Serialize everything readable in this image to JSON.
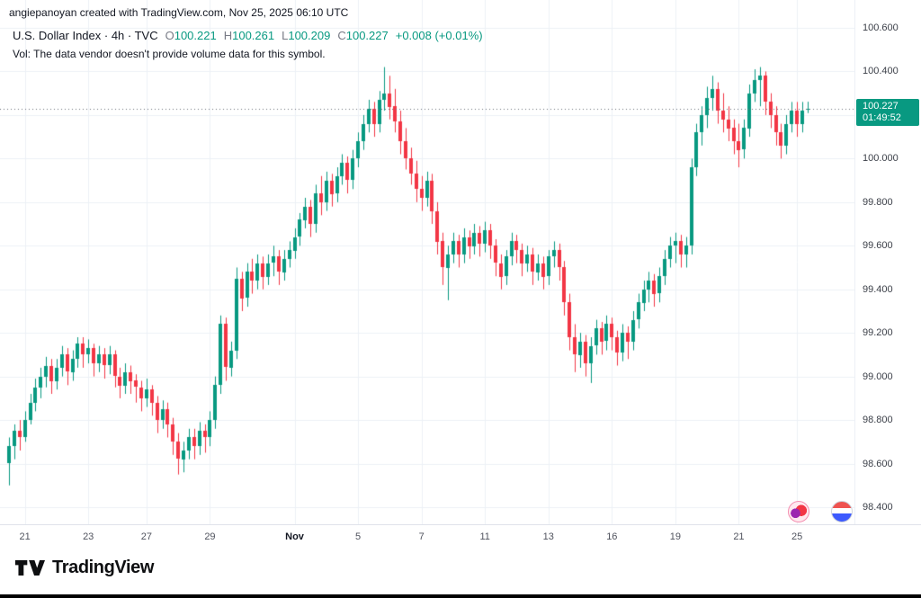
{
  "attribution": "angiepanoyan created with TradingView.com, Nov 25, 2025 06:10 UTC",
  "legend": {
    "symbol_title": "U.S. Dollar Index · 4h · TVC",
    "ohlc": {
      "o_label": "O",
      "o": "100.221",
      "h_label": "H",
      "h": "100.261",
      "l_label": "L",
      "l": "100.209",
      "c_label": "C",
      "c": "100.227"
    },
    "change": "+0.008 (+0.01%)",
    "vol_note": "Vol: The data vendor doesn't provide volume data for this symbol."
  },
  "price_scale": {
    "ticks": [
      "100.600",
      "100.400",
      "100.200",
      "100.000",
      "99.800",
      "99.600",
      "99.400",
      "99.200",
      "99.000",
      "98.800",
      "98.600",
      "98.400"
    ],
    "badge": {
      "price": "100.227",
      "countdown": "01:49:52"
    }
  },
  "time_scale": {
    "labels": [
      {
        "text": "21",
        "index": 3
      },
      {
        "text": "23",
        "index": 15
      },
      {
        "text": "27",
        "index": 26
      },
      {
        "text": "29",
        "index": 38
      },
      {
        "text": "Nov",
        "index": 54,
        "bold": true
      },
      {
        "text": "5",
        "index": 66
      },
      {
        "text": "7",
        "index": 78
      },
      {
        "text": "11",
        "index": 90
      },
      {
        "text": "13",
        "index": 102
      },
      {
        "text": "16",
        "index": 114
      },
      {
        "text": "19",
        "index": 126
      },
      {
        "text": "21",
        "index": 138
      },
      {
        "text": "25",
        "index": 149
      }
    ]
  },
  "colors": {
    "up": "#089981",
    "down": "#F23645",
    "grid": "#edf0f6",
    "last_price_line": "#6a6d78",
    "badge_bg": "#089981"
  },
  "footer": {
    "brand": "TradingView"
  },
  "chart_data": {
    "type": "candlestick",
    "title": "U.S. Dollar Index",
    "interval": "4h",
    "exchange": "TVC",
    "last_close": 100.227,
    "ylim": [
      98.32,
      100.73
    ],
    "price_grid_step": 0.2,
    "x_range": "Oct 21 - Nov 25, 2025",
    "candles": [
      [
        98.6,
        98.72,
        98.5,
        98.68
      ],
      [
        98.68,
        98.78,
        98.62,
        98.75
      ],
      [
        98.75,
        98.8,
        98.66,
        98.72
      ],
      [
        98.72,
        98.84,
        98.7,
        98.8
      ],
      [
        98.8,
        98.92,
        98.78,
        98.88
      ],
      [
        98.88,
        98.99,
        98.84,
        98.95
      ],
      [
        98.95,
        99.04,
        98.9,
        99.0
      ],
      [
        99.0,
        99.09,
        98.95,
        99.05
      ],
      [
        99.05,
        99.08,
        98.92,
        98.98
      ],
      [
        98.98,
        99.08,
        98.94,
        99.04
      ],
      [
        99.04,
        99.14,
        99.0,
        99.1
      ],
      [
        99.1,
        99.13,
        98.96,
        99.02
      ],
      [
        99.02,
        99.12,
        98.98,
        99.08
      ],
      [
        99.08,
        99.18,
        99.04,
        99.15
      ],
      [
        99.15,
        99.18,
        99.04,
        99.1
      ],
      [
        99.1,
        99.17,
        99.06,
        99.13
      ],
      [
        99.13,
        99.15,
        99.0,
        99.06
      ],
      [
        99.06,
        99.14,
        99.02,
        99.1
      ],
      [
        99.1,
        99.13,
        98.99,
        99.05
      ],
      [
        99.05,
        99.14,
        99.01,
        99.1
      ],
      [
        99.1,
        99.12,
        98.95,
        99.0
      ],
      [
        99.0,
        99.04,
        98.9,
        98.96
      ],
      [
        98.96,
        99.06,
        98.92,
        99.02
      ],
      [
        99.02,
        99.05,
        98.92,
        98.98
      ],
      [
        98.98,
        99.01,
        98.88,
        98.95
      ],
      [
        98.95,
        98.98,
        98.84,
        98.9
      ],
      [
        98.9,
        98.99,
        98.86,
        98.94
      ],
      [
        98.94,
        98.96,
        98.82,
        98.88
      ],
      [
        98.88,
        98.91,
        98.74,
        98.8
      ],
      [
        98.8,
        98.89,
        98.76,
        98.85
      ],
      [
        98.85,
        98.88,
        98.72,
        98.78
      ],
      [
        98.78,
        98.81,
        98.64,
        98.7
      ],
      [
        98.7,
        98.74,
        98.55,
        98.62
      ],
      [
        98.62,
        98.7,
        98.56,
        98.66
      ],
      [
        98.66,
        98.76,
        98.62,
        98.72
      ],
      [
        98.72,
        98.76,
        98.62,
        98.68
      ],
      [
        98.68,
        98.79,
        98.64,
        98.75
      ],
      [
        98.75,
        98.78,
        98.65,
        98.72
      ],
      [
        98.72,
        98.84,
        98.68,
        98.8
      ],
      [
        98.8,
        99.0,
        98.76,
        98.96
      ],
      [
        98.96,
        99.28,
        98.92,
        99.24
      ],
      [
        99.24,
        99.27,
        98.98,
        99.04
      ],
      [
        99.04,
        99.16,
        99.0,
        99.12
      ],
      [
        99.12,
        99.5,
        99.08,
        99.45
      ],
      [
        99.45,
        99.48,
        99.3,
        99.36
      ],
      [
        99.36,
        99.52,
        99.32,
        99.48
      ],
      [
        99.48,
        99.54,
        99.38,
        99.44
      ],
      [
        99.44,
        99.56,
        99.4,
        99.52
      ],
      [
        99.52,
        99.55,
        99.4,
        99.46
      ],
      [
        99.46,
        99.56,
        99.42,
        99.52
      ],
      [
        99.52,
        99.6,
        99.46,
        99.55
      ],
      [
        99.55,
        99.58,
        99.42,
        99.48
      ],
      [
        99.48,
        99.58,
        99.44,
        99.54
      ],
      [
        99.54,
        99.62,
        99.5,
        99.58
      ],
      [
        99.58,
        99.68,
        99.54,
        99.64
      ],
      [
        99.64,
        99.75,
        99.6,
        99.72
      ],
      [
        99.72,
        99.82,
        99.68,
        99.78
      ],
      [
        99.78,
        99.81,
        99.64,
        99.7
      ],
      [
        99.7,
        99.88,
        99.66,
        99.84
      ],
      [
        99.84,
        99.92,
        99.74,
        99.8
      ],
      [
        99.8,
        99.94,
        99.76,
        99.9
      ],
      [
        99.9,
        99.93,
        99.78,
        99.84
      ],
      [
        99.84,
        99.96,
        99.8,
        99.92
      ],
      [
        99.92,
        100.02,
        99.88,
        99.98
      ],
      [
        99.98,
        100.01,
        99.84,
        99.9
      ],
      [
        99.9,
        100.04,
        99.86,
        100.0
      ],
      [
        100.0,
        100.12,
        99.96,
        100.08
      ],
      [
        100.08,
        100.2,
        100.04,
        100.16
      ],
      [
        100.16,
        100.27,
        100.12,
        100.23
      ],
      [
        100.23,
        100.26,
        100.1,
        100.16
      ],
      [
        100.16,
        100.31,
        100.12,
        100.27
      ],
      [
        100.27,
        100.42,
        100.22,
        100.3
      ],
      [
        100.3,
        100.38,
        100.18,
        100.24
      ],
      [
        100.24,
        100.32,
        100.12,
        100.17
      ],
      [
        100.17,
        100.22,
        100.02,
        100.08
      ],
      [
        100.08,
        100.14,
        99.95,
        100.0
      ],
      [
        100.0,
        100.05,
        99.88,
        99.93
      ],
      [
        99.93,
        99.99,
        99.8,
        99.86
      ],
      [
        99.86,
        99.92,
        99.76,
        99.82
      ],
      [
        99.82,
        99.94,
        99.78,
        99.9
      ],
      [
        99.9,
        99.93,
        99.7,
        99.76
      ],
      [
        99.76,
        99.8,
        99.56,
        99.62
      ],
      [
        99.62,
        99.66,
        99.42,
        99.5
      ],
      [
        99.5,
        99.6,
        99.35,
        99.56
      ],
      [
        99.56,
        99.66,
        99.52,
        99.62
      ],
      [
        99.62,
        99.65,
        99.5,
        99.56
      ],
      [
        99.56,
        99.68,
        99.52,
        99.64
      ],
      [
        99.64,
        99.67,
        99.54,
        99.6
      ],
      [
        99.6,
        99.7,
        99.56,
        99.66
      ],
      [
        99.66,
        99.69,
        99.55,
        99.61
      ],
      [
        99.61,
        99.71,
        99.57,
        99.67
      ],
      [
        99.67,
        99.7,
        99.54,
        99.6
      ],
      [
        99.6,
        99.63,
        99.46,
        99.52
      ],
      [
        99.52,
        99.56,
        99.4,
        99.46
      ],
      [
        99.46,
        99.58,
        99.42,
        99.55
      ],
      [
        99.55,
        99.66,
        99.51,
        99.62
      ],
      [
        99.62,
        99.65,
        99.52,
        99.58
      ],
      [
        99.58,
        99.61,
        99.46,
        99.52
      ],
      [
        99.52,
        99.6,
        99.48,
        99.56
      ],
      [
        99.56,
        99.59,
        99.42,
        99.48
      ],
      [
        99.48,
        99.56,
        99.44,
        99.52
      ],
      [
        99.52,
        99.55,
        99.4,
        99.46
      ],
      [
        99.46,
        99.58,
        99.42,
        99.55
      ],
      [
        99.55,
        99.62,
        99.5,
        99.58
      ],
      [
        99.58,
        99.61,
        99.44,
        99.5
      ],
      [
        99.5,
        99.53,
        99.28,
        99.34
      ],
      [
        99.34,
        99.38,
        99.12,
        99.18
      ],
      [
        99.18,
        99.24,
        99.02,
        99.1
      ],
      [
        99.1,
        99.2,
        99.04,
        99.16
      ],
      [
        99.16,
        99.19,
        99.0,
        99.06
      ],
      [
        99.06,
        99.18,
        98.97,
        99.14
      ],
      [
        99.14,
        99.26,
        99.1,
        99.22
      ],
      [
        99.22,
        99.25,
        99.1,
        99.16
      ],
      [
        99.16,
        99.28,
        99.12,
        99.24
      ],
      [
        99.24,
        99.27,
        99.12,
        99.18
      ],
      [
        99.18,
        99.21,
        99.05,
        99.11
      ],
      [
        99.11,
        99.24,
        99.07,
        99.2
      ],
      [
        99.2,
        99.23,
        99.08,
        99.16
      ],
      [
        99.16,
        99.3,
        99.12,
        99.26
      ],
      [
        99.26,
        99.38,
        99.22,
        99.34
      ],
      [
        99.34,
        99.44,
        99.3,
        99.4
      ],
      [
        99.4,
        99.48,
        99.34,
        99.44
      ],
      [
        99.44,
        99.47,
        99.32,
        99.38
      ],
      [
        99.38,
        99.5,
        99.34,
        99.46
      ],
      [
        99.46,
        99.58,
        99.42,
        99.54
      ],
      [
        99.54,
        99.64,
        99.5,
        99.6
      ],
      [
        99.6,
        99.66,
        99.52,
        99.62
      ],
      [
        99.62,
        99.65,
        99.5,
        99.56
      ],
      [
        99.56,
        99.64,
        99.5,
        99.6
      ],
      [
        99.6,
        100.0,
        99.56,
        99.96
      ],
      [
        99.96,
        100.16,
        99.92,
        100.12
      ],
      [
        100.12,
        100.24,
        100.06,
        100.2
      ],
      [
        100.2,
        100.33,
        100.14,
        100.28
      ],
      [
        100.28,
        100.38,
        100.22,
        100.32
      ],
      [
        100.32,
        100.35,
        100.16,
        100.22
      ],
      [
        100.22,
        100.3,
        100.12,
        100.18
      ],
      [
        100.18,
        100.24,
        100.08,
        100.14
      ],
      [
        100.14,
        100.18,
        100.02,
        100.08
      ],
      [
        100.08,
        100.16,
        99.96,
        100.04
      ],
      [
        100.04,
        100.18,
        100.0,
        100.14
      ],
      [
        100.14,
        100.34,
        100.1,
        100.3
      ],
      [
        100.3,
        100.41,
        100.26,
        100.36
      ],
      [
        100.36,
        100.42,
        100.24,
        100.38
      ],
      [
        100.38,
        100.4,
        100.2,
        100.26
      ],
      [
        100.26,
        100.3,
        100.14,
        100.2
      ],
      [
        100.2,
        100.24,
        100.06,
        100.12
      ],
      [
        100.12,
        100.16,
        100.0,
        100.06
      ],
      [
        100.06,
        100.2,
        100.02,
        100.16
      ],
      [
        100.16,
        100.26,
        100.12,
        100.22
      ],
      [
        100.22,
        100.26,
        100.1,
        100.16
      ],
      [
        100.16,
        100.26,
        100.12,
        100.221
      ],
      [
        100.221,
        100.261,
        100.209,
        100.227
      ]
    ]
  }
}
